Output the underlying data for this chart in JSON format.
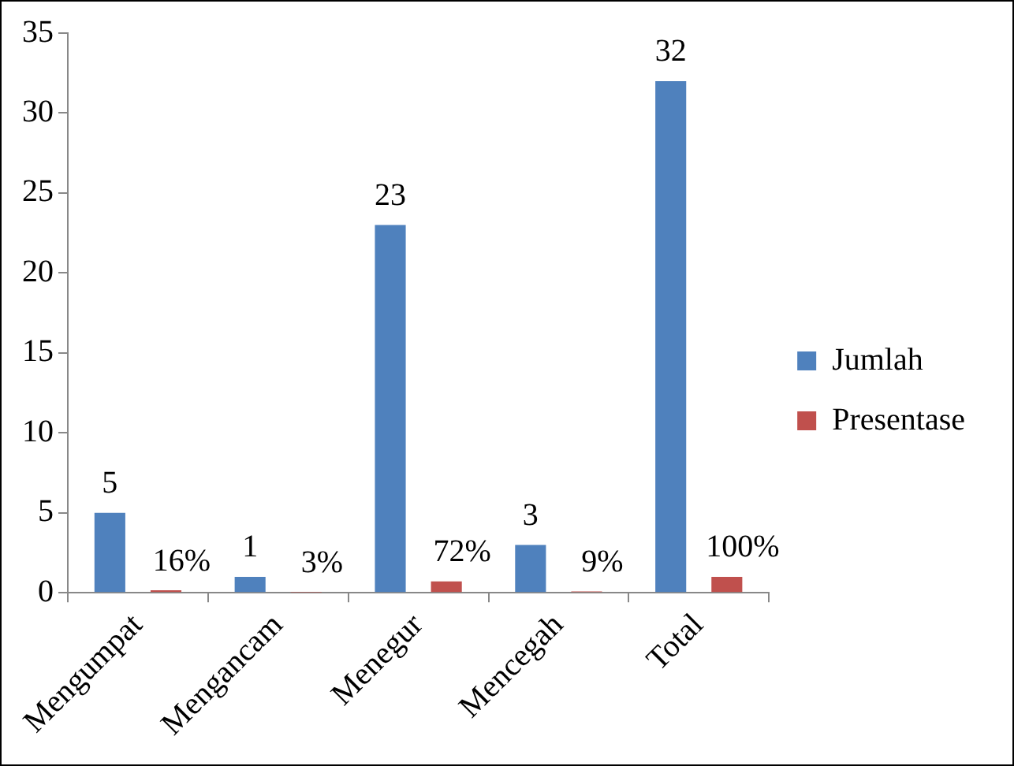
{
  "chart_data": {
    "type": "bar",
    "categories": [
      "Mengumpat",
      "Mengancam",
      "Menegur",
      "Mencegah",
      "Total"
    ],
    "series": [
      {
        "name": "Jumlah",
        "color": "#4f81bd",
        "values": [
          5,
          1,
          23,
          3,
          32
        ],
        "value_labels": [
          "5",
          "1",
          "23",
          "3",
          "32"
        ]
      },
      {
        "name": "Presentase",
        "color": "#c0504d",
        "values": [
          0.16,
          0.03,
          0.72,
          0.09,
          1
        ],
        "value_labels": [
          "16%",
          "3%",
          "72%",
          "9%",
          "100%"
        ]
      }
    ],
    "ylim": [
      0,
      35
    ],
    "yticks": [
      0,
      5,
      10,
      15,
      20,
      25,
      30,
      35
    ],
    "grid": false,
    "legend": "right"
  }
}
